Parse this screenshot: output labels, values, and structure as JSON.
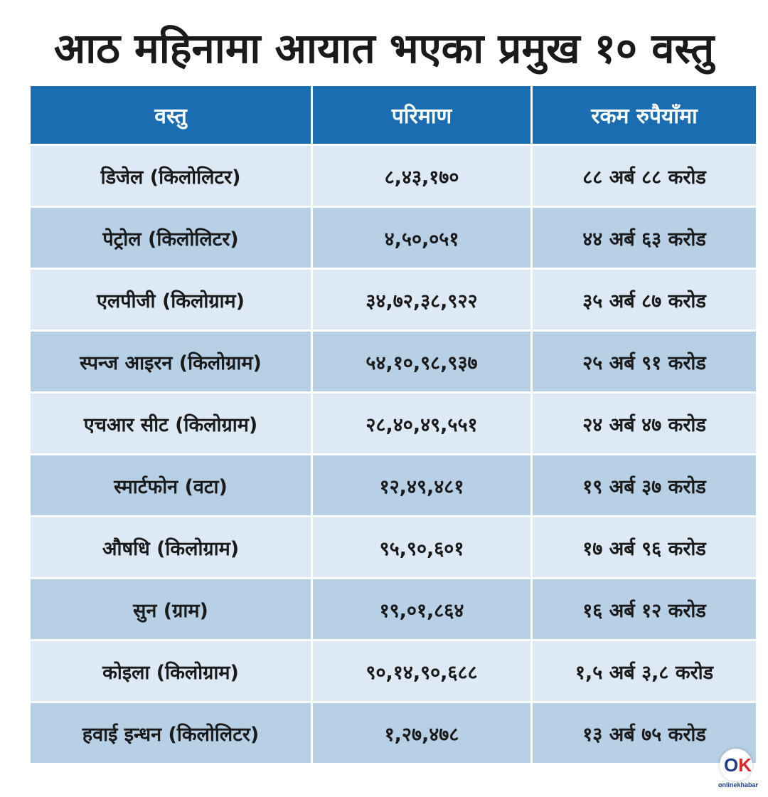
{
  "title": "आठ महिनामा आयात भएका प्रमुख १० वस्तु",
  "table": {
    "headers": [
      "वस्तु",
      "परिमाण",
      "रकम रुपैयाँमा"
    ],
    "rows": [
      [
        "डिजेल (किलोलिटर)",
        "८,४३,१७०",
        "८८ अर्ब ८८ करोड"
      ],
      [
        "पेट्रोल (किलोलिटर)",
        "४,५०,०५१",
        "४४ अर्ब ६३ करोड"
      ],
      [
        "एलपीजी (किलोग्राम)",
        "३४,७२,३८,९२२",
        "३५ अर्ब ८७ करोड"
      ],
      [
        "स्पन्ज आइरन (किलोग्राम)",
        "५४,१०,९८,९३७",
        "२५ अर्ब ९१ करोड"
      ],
      [
        "एचआर सीट (किलोग्राम)",
        "२८,४०,४९,५५१",
        "२४ अर्ब ४७ करोड"
      ],
      [
        "स्मार्टफोन (वटा)",
        "१२,४९,४८१",
        "१९ अर्ब ३७ करोड"
      ],
      [
        "औषधि (किलोग्राम)",
        "९५,९०,६०१",
        "१७ अर्ब ९६ करोड"
      ],
      [
        "सुन (ग्राम)",
        "१९,०१,८६४",
        "१६ अर्ब १२ करोड"
      ],
      [
        "कोइला (किलोग्राम)",
        "९०,१४,९०,६८८",
        "१,५ अर्ब ३,८ करोड"
      ],
      [
        "हवाई इन्धन (किलोलिटर)",
        "१,२७,४७८",
        "१३ अर्ब ७५ करोड"
      ]
    ]
  },
  "logo": {
    "mark_o": "O",
    "mark_k": "K",
    "text": "onlinekhabar",
    "accent": "#e0242b",
    "brand": "#1f3f8a"
  },
  "colors": {
    "header": "#1a6db0",
    "row_light": "#dde9f5",
    "row_dark": "#b7d0e5"
  }
}
